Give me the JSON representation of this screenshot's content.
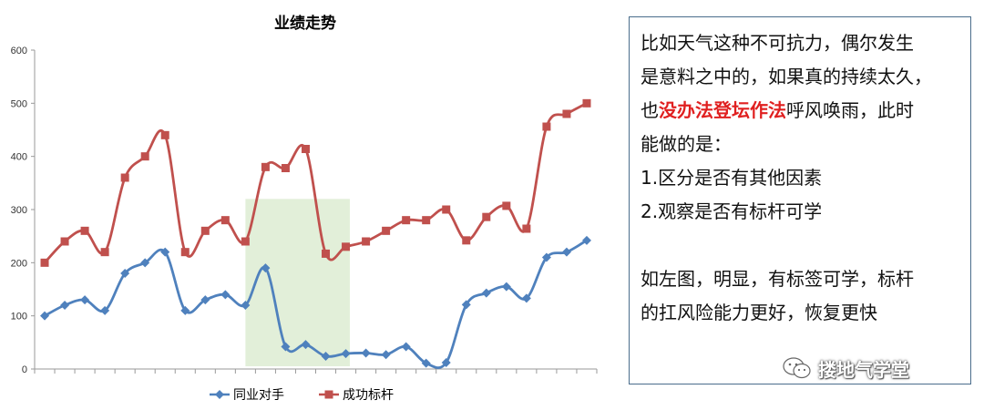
{
  "chart_data": {
    "type": "line",
    "title": "业绩走势",
    "ylim": [
      0,
      600
    ],
    "yticks": [
      0,
      100,
      200,
      300,
      400,
      500,
      600
    ],
    "legend_position": "bottom",
    "grid": false,
    "highlight_region": {
      "x_start": 10.5,
      "x_end": 15.7,
      "y_top": 320,
      "color": "#e2efd9"
    },
    "series": [
      {
        "name": "同业对手",
        "color": "#4f81bd",
        "marker": "diamond",
        "values": [
          100,
          120,
          130,
          110,
          180,
          200,
          220,
          110,
          130,
          140,
          120,
          190,
          42,
          46,
          24,
          29,
          30,
          27,
          42,
          11,
          12,
          121,
          143,
          155,
          133,
          210,
          220,
          242
        ]
      },
      {
        "name": "成功标杆",
        "color": "#c0504d",
        "marker": "square",
        "values": [
          200,
          240,
          260,
          220,
          360,
          400,
          440,
          220,
          260,
          280,
          240,
          380,
          378,
          414,
          217,
          230,
          240,
          260,
          280,
          280,
          300,
          242,
          286,
          307,
          264,
          456,
          480,
          500
        ]
      }
    ]
  },
  "textbox": {
    "line1": "比如天气这种不可抗力，偶尔发生",
    "line2": "是意料之中的，如果真的持续太久，",
    "line3_prefix": "也",
    "line3_highlight": "没办法登坛作法",
    "line3_suffix": "呼风唤雨，此时",
    "line4": "能做的是：",
    "item1": "1.区分是否有其他因素",
    "item2": "2.观察是否有标杆可学",
    "para2_line1": "如左图，明显，有标签可学，标杆",
    "para2_line2": "的扛风险能力更好，恢复更快"
  },
  "watermark": {
    "icon": "wechat-icon",
    "text": "搂地气学堂"
  }
}
